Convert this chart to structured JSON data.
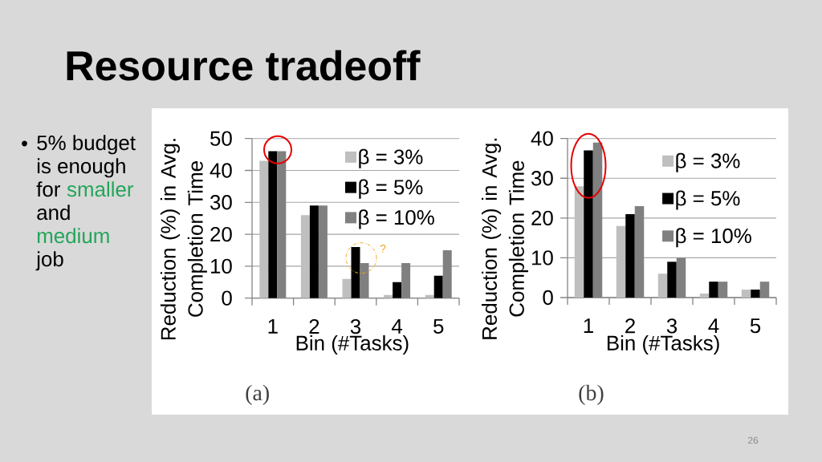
{
  "chart_data": [
    {
      "type": "other",
      "title": "Resource tradeoff",
      "annotations": [
        "5% budget",
        "is enough",
        "for",
        "smaller",
        "and",
        "medium",
        "job"
      ]
    },
    {
      "type": "bar",
      "xlabel": "Bin (#Tasks)",
      "ylabel": "Reduction (%) in Avg. Completion Time",
      "categories": [
        "1",
        "2",
        "3",
        "4",
        "5"
      ],
      "series": [
        {
          "name": "β = 3%",
          "color": "#bfbfbf",
          "values": [
            43,
            26,
            6,
            1,
            1
          ]
        },
        {
          "name": "β = 5%",
          "color": "#000000",
          "values": [
            46,
            29,
            16,
            5,
            7
          ]
        },
        {
          "name": "β = 10%",
          "color": "#808080",
          "values": [
            46,
            29,
            11,
            11,
            15
          ]
        }
      ],
      "ylim": [
        0,
        50
      ],
      "yticks": [
        0,
        10,
        20,
        30,
        40,
        50
      ],
      "grid": "y",
      "legend": "top right",
      "annotations": [
        "(a)",
        "?"
      ]
    },
    {
      "type": "bar",
      "xlabel": "Bin (#Tasks)",
      "ylabel": "Reduction (%) in Avg. Completion Time",
      "categories": [
        "1",
        "2",
        "3",
        "4",
        "5"
      ],
      "series": [
        {
          "name": "β = 3%",
          "color": "#bfbfbf",
          "values": [
            28,
            18,
            6,
            1,
            2
          ]
        },
        {
          "name": "β = 5%",
          "color": "#000000",
          "values": [
            37,
            21,
            9,
            4,
            2
          ]
        },
        {
          "name": "β = 10%",
          "color": "#808080",
          "values": [
            39,
            23,
            10,
            4,
            4
          ]
        }
      ],
      "ylim": [
        0,
        40
      ],
      "yticks": [
        0,
        10,
        20,
        30,
        40
      ],
      "grid": "y",
      "legend": "top right",
      "annotations": [
        "(b)",
        "26"
      ]
    }
  ]
}
